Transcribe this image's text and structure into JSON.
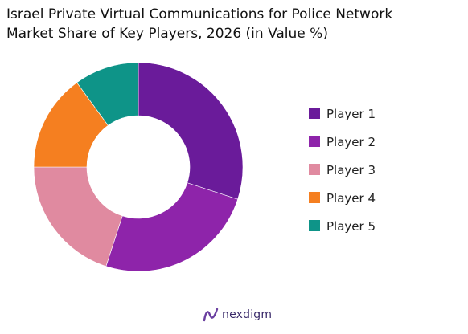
{
  "chart_data": {
    "type": "pie",
    "variant": "donut",
    "title": "Israel Private Virtual Communications for Police Network",
    "subtitle": "Market Share of Key Players, 2026 (in Value %)",
    "categories": [
      "Player 1",
      "Player 2",
      "Player 3",
      "Player 4",
      "Player 5"
    ],
    "values": [
      30,
      25,
      20,
      15,
      10
    ],
    "colors": [
      "#6a1b9a",
      "#8e24aa",
      "#e08aa0",
      "#f57f20",
      "#0e9488"
    ],
    "legend_position": "right",
    "start_angle_deg": 0,
    "direction": "clockwise"
  },
  "brand": {
    "name": "nexdigm",
    "logo_icon": "nexdigm-logo-icon"
  }
}
